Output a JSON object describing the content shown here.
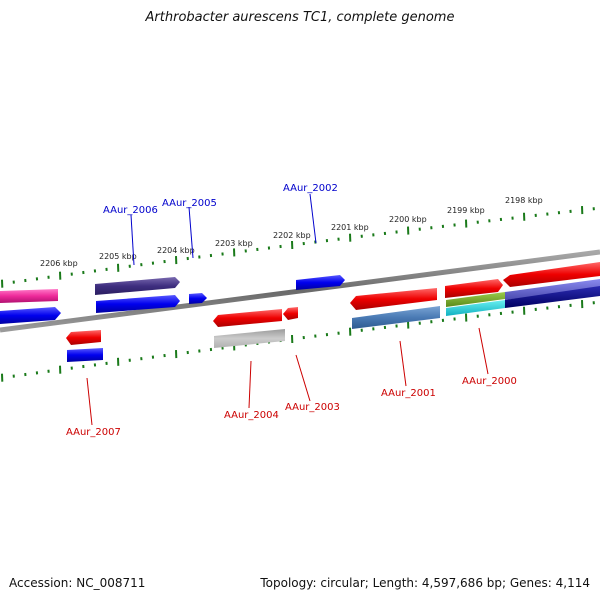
{
  "title": "Arthrobacter aurescens TC1, complete genome",
  "footer": {
    "accession": "Accession: NC_008711",
    "summary": "Topology: circular; Length: 4,597,686 bp; Genes: 4,114"
  },
  "kbp_labels": [
    "2206 kbp",
    "2205 kbp",
    "2204 kbp",
    "2203 kbp",
    "2202 kbp",
    "2201 kbp",
    "2200 kbp",
    "2199 kbp",
    "2198 kbp"
  ],
  "gene_labels": {
    "forward": [
      "AAur_2006",
      "AAur_2005",
      "AAur_2002"
    ],
    "reverse": [
      "AAur_2007",
      "AAur_2004",
      "AAur_2003",
      "AAur_2001",
      "AAur_2000"
    ]
  },
  "colors": {
    "forward_label": "#0000cc",
    "reverse_label": "#cc0000",
    "tick": "#1a7a1a",
    "backbone": "#808080"
  }
}
